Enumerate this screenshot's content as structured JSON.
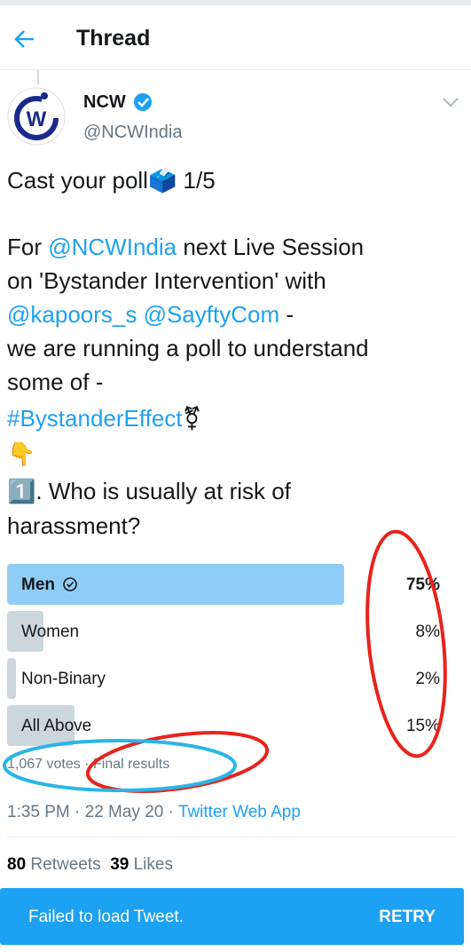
{
  "header": {
    "title": "Thread"
  },
  "author": {
    "name": "NCW",
    "handle": "@NCWIndia"
  },
  "tweet": {
    "lines": [
      [
        "Cast your poll🗳️ 1/5"
      ],
      [
        "For ",
        "@NCWIndia",
        " next Live Session"
      ],
      [
        "on 'Bystander Intervention' with"
      ],
      [
        "@kapoors_s @SayftyCom",
        " -"
      ],
      [
        "we are running a poll to understand"
      ],
      [
        "some of -"
      ],
      [
        "#BystanderEffect",
        "⚧"
      ],
      [
        "👇"
      ],
      [
        "1️⃣. Who is usually at risk of"
      ],
      [
        "harassment?"
      ]
    ]
  },
  "poll": {
    "options": [
      {
        "label": "Men",
        "percent": {
          "value": 75,
          "label": "75%"
        }
      },
      {
        "label": "Women",
        "percent": {
          "value": 8,
          "label": "8%"
        }
      },
      {
        "label": "Non-Binary",
        "percent": {
          "value": 2,
          "label": "2%"
        }
      },
      {
        "label": "All Above",
        "percent": {
          "value": 15,
          "label": "15%"
        }
      }
    ],
    "votes": "1,067 votes",
    "status": "· Final results"
  },
  "meta": {
    "time": "1:35 PM · 22 May 20 · ",
    "source": "Twitter Web App"
  },
  "stats": {
    "retweets": "80",
    "retweets_label": "Retweets",
    "likes": "39",
    "likes_label": "Likes"
  },
  "banner": {
    "message": "Failed to load Tweet.",
    "action": "RETRY"
  }
}
